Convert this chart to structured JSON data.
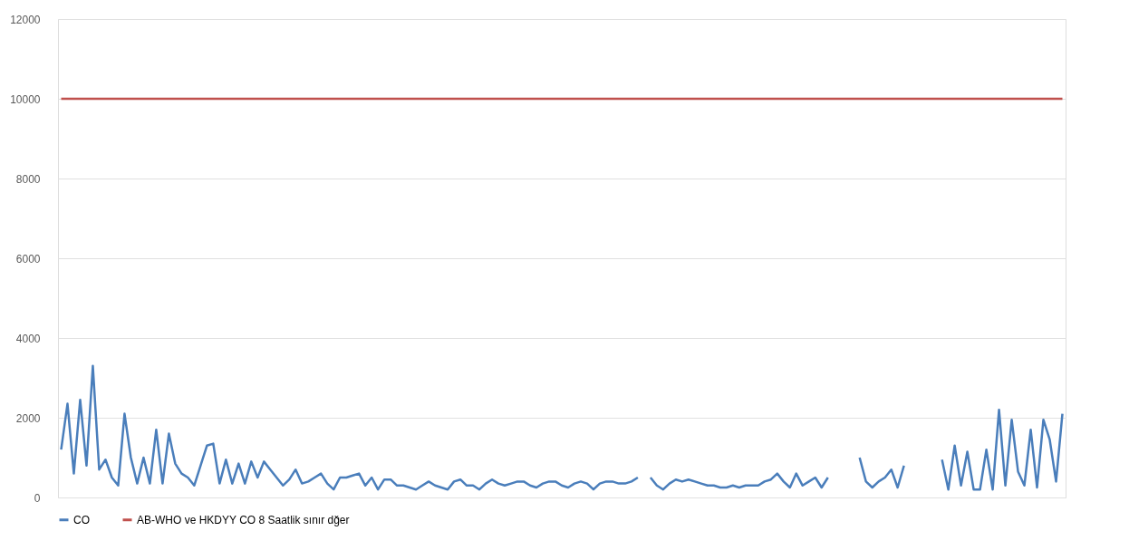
{
  "chart_data": {
    "type": "line",
    "categories": [
      null,
      null,
      null,
      null,
      null,
      null,
      null,
      null,
      null,
      null,
      null,
      null,
      null,
      null,
      null,
      null,
      null,
      null,
      null,
      null,
      null,
      null,
      null,
      null,
      null,
      null,
      null,
      null,
      null,
      null,
      null,
      null,
      null,
      null,
      null,
      null,
      null,
      null,
      null,
      null,
      null,
      null,
      null,
      null,
      null,
      null,
      null,
      null,
      null,
      null,
      null,
      null,
      null,
      null,
      null,
      null,
      null,
      null,
      null,
      null,
      null,
      null,
      null,
      null,
      null,
      null,
      null,
      null,
      null,
      null,
      null,
      null,
      null,
      null,
      null,
      null,
      null,
      null,
      null,
      null,
      null,
      null,
      null,
      null,
      null,
      null,
      null,
      null,
      null,
      null,
      null,
      null,
      null,
      null,
      null,
      null,
      null,
      null,
      null,
      null,
      null,
      null,
      null,
      null,
      null,
      null,
      null,
      null,
      null,
      null,
      null,
      null,
      null,
      null,
      null,
      null,
      null,
      null,
      null,
      null,
      null,
      null,
      null,
      null,
      null,
      null,
      null,
      null,
      null,
      null,
      null,
      null,
      null,
      null,
      null,
      null,
      null,
      null,
      null,
      null,
      null,
      null,
      null,
      null,
      null,
      null,
      null,
      null,
      null,
      null,
      null,
      null,
      null,
      null,
      null,
      null,
      null,
      null,
      null
    ],
    "series": [
      {
        "name": "CO",
        "color": "#4a7ebb",
        "values": [
          1200,
          2350,
          600,
          2450,
          800,
          3300,
          700,
          950,
          500,
          300,
          2100,
          1000,
          350,
          1000,
          350,
          1700,
          350,
          1600,
          850,
          600,
          500,
          300,
          800,
          1300,
          1350,
          350,
          950,
          350,
          850,
          350,
          900,
          500,
          900,
          700,
          500,
          300,
          450,
          700,
          350,
          400,
          500,
          600,
          350,
          200,
          500,
          500,
          550,
          600,
          300,
          500,
          200,
          450,
          450,
          300,
          300,
          250,
          200,
          300,
          400,
          300,
          250,
          200,
          400,
          450,
          300,
          300,
          200,
          350,
          450,
          350,
          300,
          350,
          400,
          400,
          300,
          250,
          350,
          400,
          400,
          300,
          250,
          350,
          400,
          350,
          200,
          350,
          400,
          400,
          350,
          350,
          400,
          500,
          null,
          500,
          300,
          200,
          350,
          450,
          400,
          450,
          400,
          350,
          300,
          300,
          250,
          250,
          300,
          250,
          300,
          300,
          300,
          400,
          450,
          600,
          400,
          250,
          600,
          300,
          400,
          500,
          250,
          500,
          null,
          null,
          null,
          null,
          1000,
          400,
          250,
          400,
          500,
          700,
          250,
          800,
          null,
          null,
          null,
          null,
          null,
          950,
          200,
          1300,
          300,
          1150,
          200,
          200,
          1200,
          200,
          2200,
          300,
          1950,
          650,
          300,
          1700,
          250,
          1950,
          1450,
          400,
          2100
        ]
      },
      {
        "name": "AB-WHO ve HKDYY CO 8 Saatlik sınır dğer",
        "color": "#c0504d",
        "values": [
          10000,
          10000,
          10000,
          10000,
          10000,
          10000,
          10000,
          10000,
          10000,
          10000,
          10000,
          10000,
          10000,
          10000,
          10000,
          10000,
          10000,
          10000,
          10000,
          10000,
          10000,
          10000,
          10000,
          10000,
          10000,
          10000,
          10000,
          10000,
          10000,
          10000,
          10000,
          10000,
          10000,
          10000,
          10000,
          10000,
          10000,
          10000,
          10000,
          10000,
          10000,
          10000,
          10000,
          10000,
          10000,
          10000,
          10000,
          10000,
          10000,
          10000,
          10000,
          10000,
          10000,
          10000,
          10000,
          10000,
          10000,
          10000,
          10000,
          10000,
          10000,
          10000,
          10000,
          10000,
          10000,
          10000,
          10000,
          10000,
          10000,
          10000,
          10000,
          10000,
          10000,
          10000,
          10000,
          10000,
          10000,
          10000,
          10000,
          10000,
          10000,
          10000,
          10000,
          10000,
          10000,
          10000,
          10000,
          10000,
          10000,
          10000,
          10000,
          10000,
          10000,
          10000,
          10000,
          10000,
          10000,
          10000,
          10000,
          10000,
          10000,
          10000,
          10000,
          10000,
          10000,
          10000,
          10000,
          10000,
          10000,
          10000,
          10000,
          10000,
          10000,
          10000,
          10000,
          10000,
          10000,
          10000,
          10000,
          10000,
          10000,
          10000,
          10000,
          10000,
          10000,
          10000,
          10000,
          10000,
          10000,
          10000,
          10000,
          10000,
          10000,
          10000,
          10000,
          10000,
          10000,
          10000,
          10000,
          10000,
          10000,
          10000,
          10000,
          10000,
          10000,
          10000,
          10000,
          10000,
          10000,
          10000,
          10000,
          10000,
          10000,
          10000,
          10000,
          10000,
          10000,
          10000,
          10000
        ]
      }
    ],
    "ylim": [
      0,
      12000
    ],
    "yticks": [
      0,
      2000,
      4000,
      6000,
      8000,
      10000,
      12000
    ],
    "grid": "y",
    "legend": "bottom",
    "tick_labels": "y",
    "marker": "none"
  }
}
